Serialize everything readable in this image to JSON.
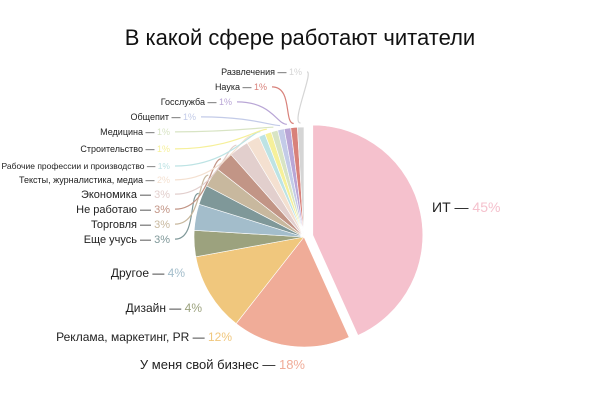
{
  "chart_data": {
    "type": "pie",
    "title": "В какой сфере работают читатели",
    "unit": "%",
    "start": "top",
    "direction": "clockwise",
    "exploded": "ИТ",
    "slices": [
      {
        "label": "ИТ",
        "value": 45,
        "color": "#f5c1cd"
      },
      {
        "label": "У меня свой бизнес",
        "value": 18,
        "color": "#f0ac98"
      },
      {
        "label": "Реклама, маркетинг, PR",
        "value": 12,
        "color": "#f0c77d"
      },
      {
        "label": "Дизайн",
        "value": 4,
        "color": "#9ca27e"
      },
      {
        "label": "Другое",
        "value": 4,
        "color": "#a3bdcb"
      },
      {
        "label": "Еще учусь",
        "value": 3,
        "color": "#7f9899"
      },
      {
        "label": "Торговля",
        "value": 3,
        "color": "#c8b89e"
      },
      {
        "label": "Не работаю",
        "value": 3,
        "color": "#c29586"
      },
      {
        "label": "Экономика",
        "value": 3,
        "color": "#e2cfcd"
      },
      {
        "label": "Тексты, журналистика, медиа",
        "value": 2,
        "color": "#f4e0d0"
      },
      {
        "label": "Рабочие профессии и производство",
        "value": 1,
        "color": "#bde3e4"
      },
      {
        "label": "Строительство",
        "value": 1,
        "color": "#f6f09a"
      },
      {
        "label": "Медицина",
        "value": 1,
        "color": "#d8e4c4"
      },
      {
        "label": "Общепит",
        "value": 1,
        "color": "#c3cbe8"
      },
      {
        "label": "Госслужба",
        "value": 1,
        "color": "#b9a6d6"
      },
      {
        "label": "Наука",
        "value": 1,
        "color": "#d8817a"
      },
      {
        "label": "Развлечения",
        "value": 1,
        "color": "#d5d5d5"
      }
    ]
  }
}
